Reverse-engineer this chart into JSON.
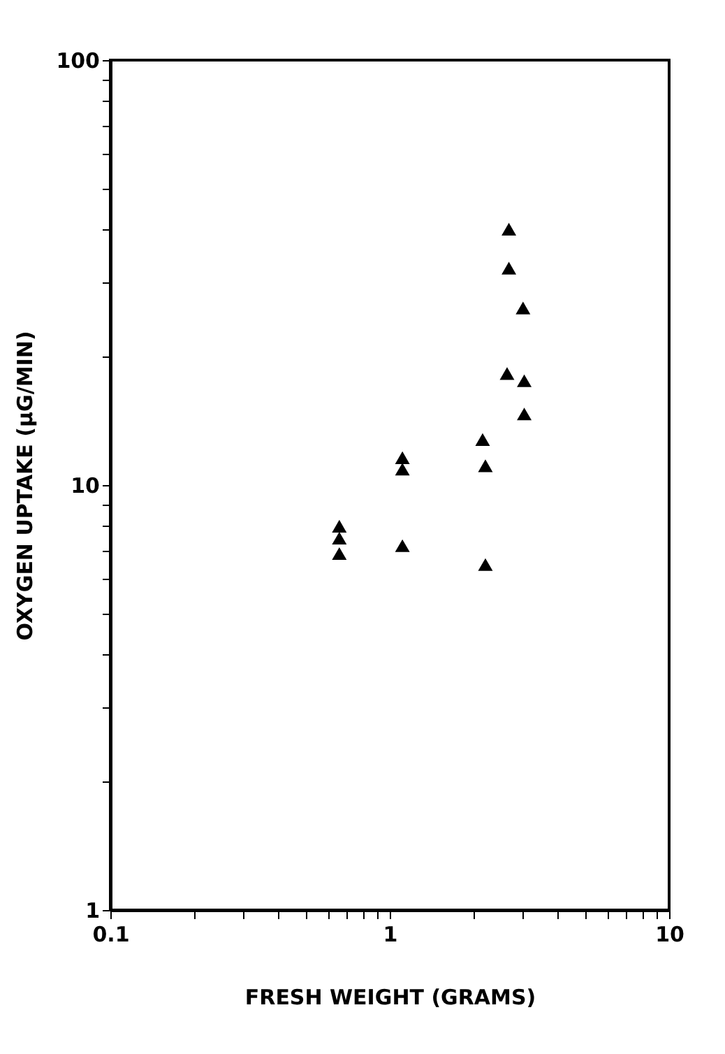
{
  "chart_data": {
    "type": "scatter",
    "xlabel": "FRESH WEIGHT (GRAMS)",
    "ylabel": "OXYGEN UPTAKE (μG/MIN)",
    "log": "xy",
    "marker": "triangle",
    "grid": false,
    "xlim": [
      0.1,
      10
    ],
    "ylim": [
      1,
      100
    ],
    "xticks": [
      0.1,
      {
        "value": 0.2,
        "label": null
      },
      {
        "value": 0.3,
        "label": null
      },
      {
        "value": 0.4,
        "label": null
      },
      {
        "value": 0.5,
        "label": null
      },
      {
        "value": 0.6,
        "label": null
      },
      {
        "value": 0.7,
        "label": null
      },
      {
        "value": 0.8,
        "label": null
      },
      {
        "value": 0.9,
        "label": null
      },
      1,
      {
        "value": 2,
        "label": null
      },
      {
        "value": 3,
        "label": null
      },
      {
        "value": 4,
        "label": null
      },
      {
        "value": 5,
        "label": null
      },
      {
        "value": 6,
        "label": null
      },
      {
        "value": 7,
        "label": null
      },
      {
        "value": 8,
        "label": null
      },
      {
        "value": 9,
        "label": null
      },
      10
    ],
    "yticks": [
      1,
      {
        "value": 2,
        "label": null
      },
      {
        "value": 3,
        "label": null
      },
      {
        "value": 4,
        "label": null
      },
      {
        "value": 5,
        "label": null
      },
      {
        "value": 6,
        "label": null
      },
      {
        "value": 7,
        "label": null
      },
      {
        "value": 8,
        "label": null
      },
      {
        "value": 9,
        "label": null
      },
      10,
      {
        "value": 20,
        "label": null
      },
      {
        "value": 30,
        "label": null
      },
      {
        "value": 40,
        "label": null
      },
      {
        "value": 50,
        "label": null
      },
      {
        "value": 60,
        "label": null
      },
      {
        "value": 70,
        "label": null
      },
      {
        "value": 80,
        "label": null
      },
      {
        "value": 90,
        "label": null
      },
      100
    ],
    "series": [
      {
        "color": "#000000",
        "x": [
          2.67,
          2.67,
          3.0,
          2.63,
          3.03,
          3.03,
          2.15,
          2.2,
          1.11,
          1.11,
          0.66,
          0.66,
          0.66,
          1.11,
          2.2
        ],
        "values": [
          40,
          32.4,
          26.1,
          18.3,
          17.6,
          14.7,
          12.8,
          11.1,
          11.6,
          10.9,
          8.0,
          7.5,
          6.9,
          7.2,
          6.5
        ]
      }
    ]
  }
}
